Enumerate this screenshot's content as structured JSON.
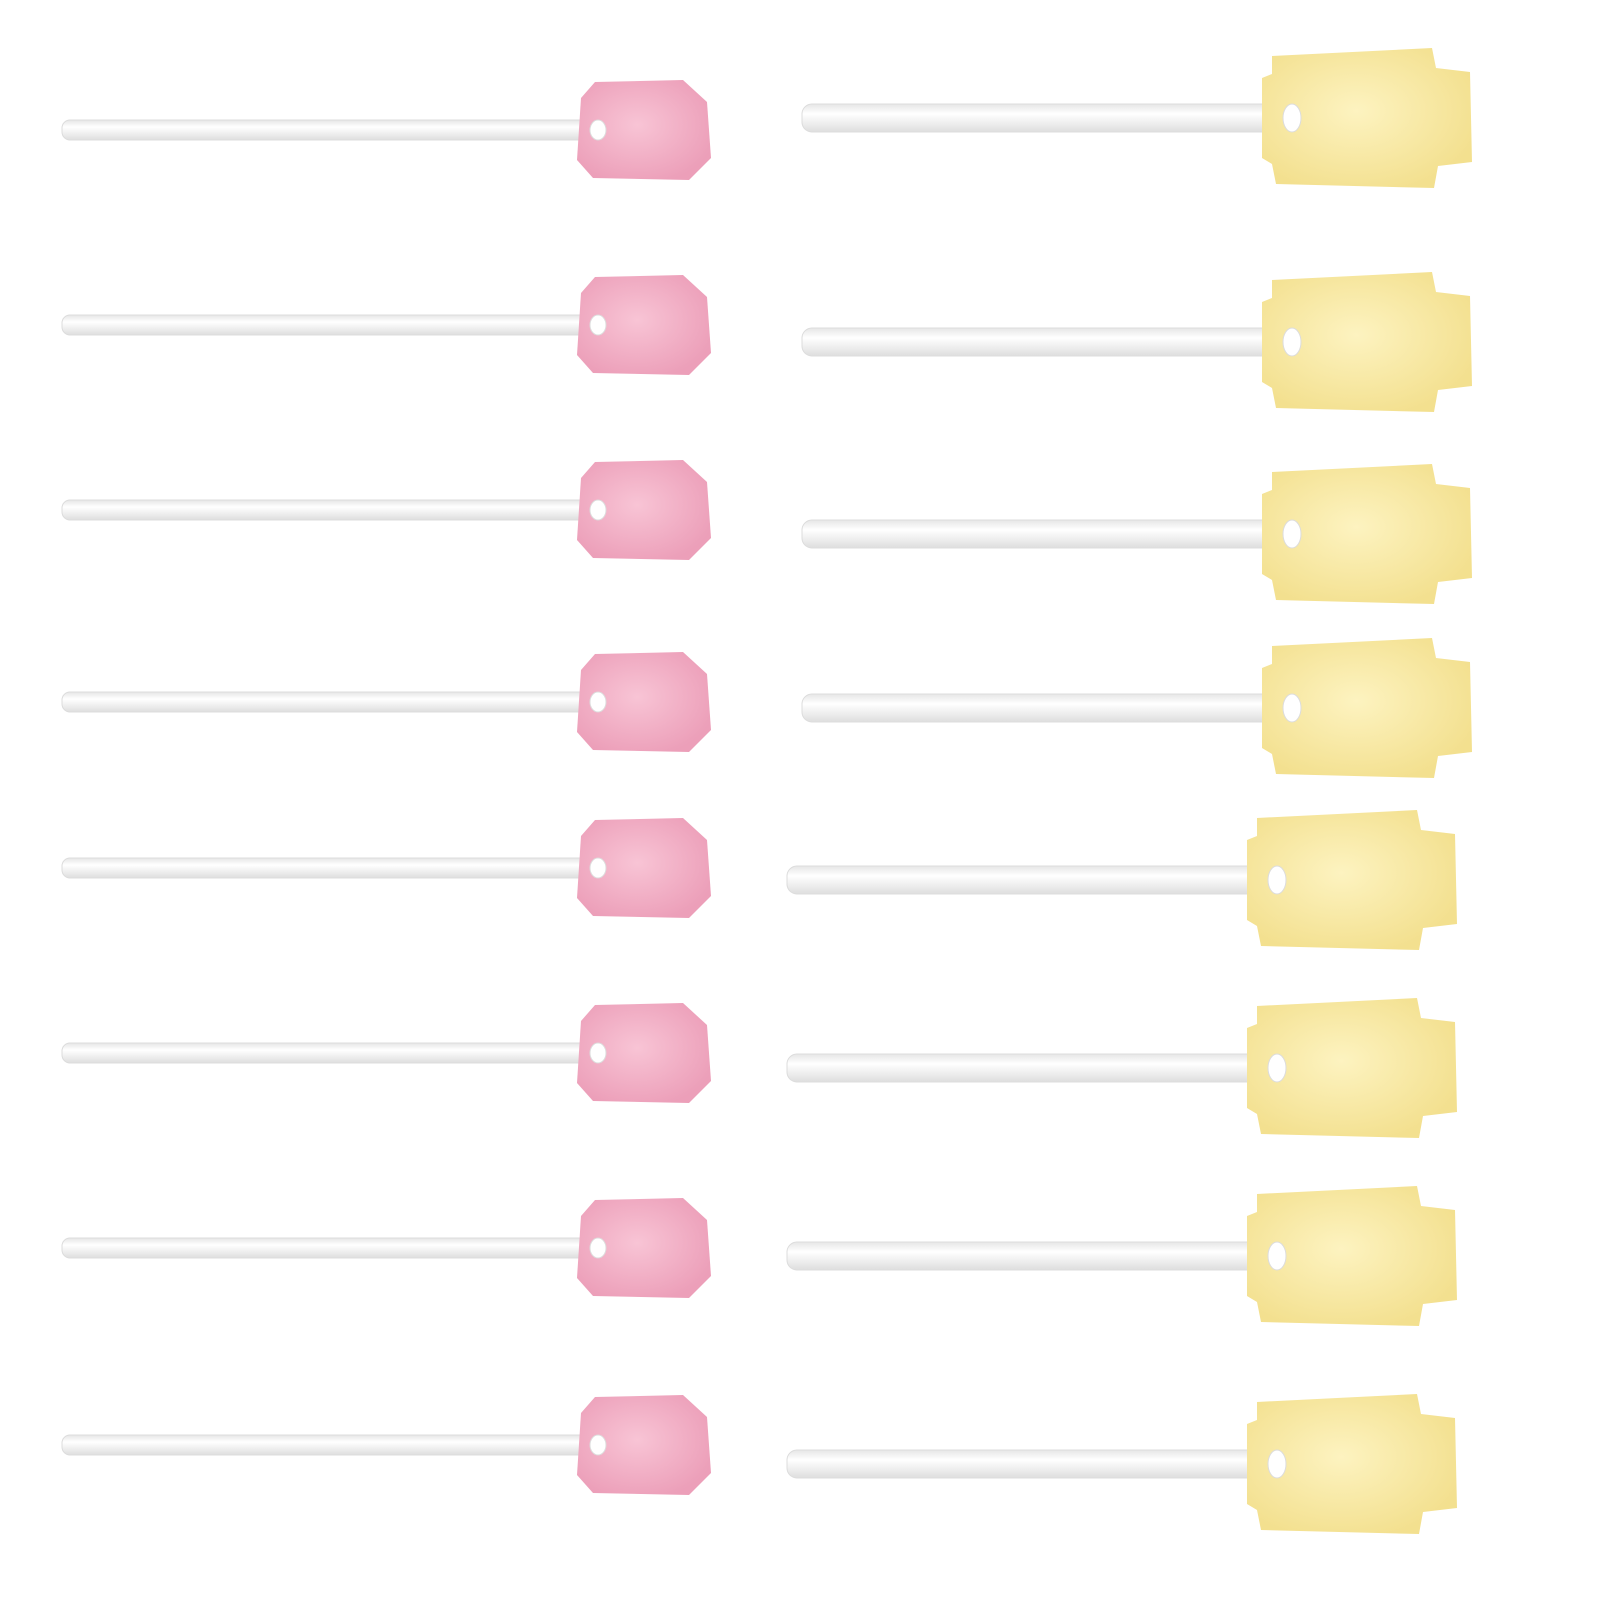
{
  "colors": {
    "background": "#ffffff",
    "pink_sponge": "#f5b6cb",
    "pink_sponge_shade": "#e99ab4",
    "yellow_sponge": "#fbeeae",
    "yellow_sponge_shade": "#f0dc8a",
    "stick": "#ffffff",
    "stick_edge": "#dcdcdc"
  },
  "items": {
    "pink_swabs": 8,
    "yellow_swabs": 8
  }
}
